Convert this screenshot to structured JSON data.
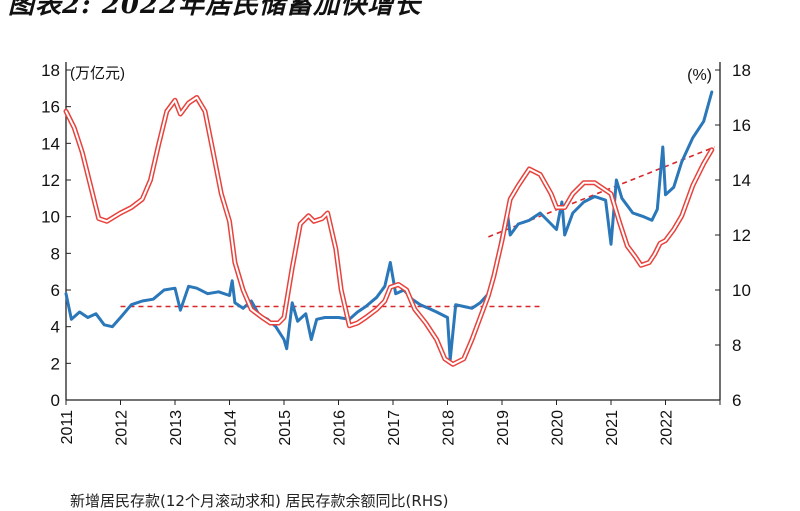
{
  "page_title": "图表2: 2022年居民储蓄加快增长",
  "legend_caption": "新增居民存款(12个月滚动求和) 居民存款余额同比(RHS)",
  "chart_data": {
    "type": "line",
    "title": "图表2: 2022年居民储蓄加快增长",
    "y_left": {
      "unit_label": "(万亿元)",
      "range": [
        0,
        18
      ],
      "ticks": [
        "0",
        "2",
        "4",
        "6",
        "8",
        "10",
        "12",
        "14",
        "16",
        "18"
      ]
    },
    "y_right": {
      "unit_label": "(%)",
      "range": [
        6,
        18
      ],
      "ticks": [
        "6",
        "8",
        "10",
        "12",
        "14",
        "16",
        "18"
      ]
    },
    "x": {
      "range": [
        2011,
        2023
      ],
      "ticks": [
        "2011",
        "2012",
        "2013",
        "2014",
        "2015",
        "2016",
        "2017",
        "2018",
        "2019",
        "2020",
        "2021",
        "2022"
      ]
    },
    "grid": false,
    "series": [
      {
        "axis": "left",
        "color": "#2a77b9",
        "points": [
          [
            2011,
            5.8
          ],
          [
            2011.1,
            4.4
          ],
          [
            2011.25,
            4.8
          ],
          [
            2011.4,
            4.5
          ],
          [
            2011.55,
            4.7
          ],
          [
            2011.7,
            4.1
          ],
          [
            2011.85,
            4.0
          ],
          [
            2012,
            4.5
          ],
          [
            2012.2,
            5.2
          ],
          [
            2012.4,
            5.4
          ],
          [
            2012.6,
            5.5
          ],
          [
            2012.8,
            6.0
          ],
          [
            2013,
            6.1
          ],
          [
            2013.1,
            4.9
          ],
          [
            2013.25,
            6.2
          ],
          [
            2013.4,
            6.1
          ],
          [
            2013.6,
            5.8
          ],
          [
            2013.8,
            5.9
          ],
          [
            2014,
            5.7
          ],
          [
            2014.05,
            6.5
          ],
          [
            2014.1,
            5.3
          ],
          [
            2014.25,
            5.0
          ],
          [
            2014.4,
            5.4
          ],
          [
            2014.55,
            4.6
          ],
          [
            2014.7,
            4.4
          ],
          [
            2014.85,
            4.0
          ],
          [
            2015,
            3.3
          ],
          [
            2015.05,
            2.8
          ],
          [
            2015.15,
            5.3
          ],
          [
            2015.25,
            4.3
          ],
          [
            2015.4,
            4.7
          ],
          [
            2015.5,
            3.3
          ],
          [
            2015.6,
            4.4
          ],
          [
            2015.75,
            4.5
          ],
          [
            2016,
            4.5
          ],
          [
            2016.2,
            4.4
          ],
          [
            2016.35,
            4.8
          ],
          [
            2016.5,
            5.1
          ],
          [
            2016.7,
            5.6
          ],
          [
            2016.85,
            6.2
          ],
          [
            2016.95,
            7.5
          ],
          [
            2017.05,
            5.8
          ],
          [
            2017.2,
            6.0
          ],
          [
            2017.35,
            5.5
          ],
          [
            2017.5,
            5.2
          ],
          [
            2017.65,
            5.0
          ],
          [
            2017.8,
            4.8
          ],
          [
            2018,
            4.5
          ],
          [
            2018.05,
            2.2
          ],
          [
            2018.15,
            5.2
          ],
          [
            2018.3,
            5.1
          ],
          [
            2018.45,
            5.0
          ],
          [
            2018.6,
            5.3
          ],
          [
            2018.75,
            5.8
          ],
          [
            2018.9,
            7.5
          ],
          [
            2019,
            9.0
          ],
          [
            2019.1,
            10.2
          ],
          [
            2019.15,
            9.0
          ],
          [
            2019.3,
            9.6
          ],
          [
            2019.5,
            9.8
          ],
          [
            2019.7,
            10.2
          ],
          [
            2019.9,
            9.6
          ],
          [
            2020,
            9.3
          ],
          [
            2020.1,
            10.8
          ],
          [
            2020.15,
            9.0
          ],
          [
            2020.3,
            10.2
          ],
          [
            2020.5,
            10.8
          ],
          [
            2020.7,
            11.1
          ],
          [
            2020.9,
            10.9
          ],
          [
            2021,
            8.5
          ],
          [
            2021.1,
            12.0
          ],
          [
            2021.2,
            11.0
          ],
          [
            2021.4,
            10.2
          ],
          [
            2021.6,
            10.0
          ],
          [
            2021.75,
            9.8
          ],
          [
            2021.85,
            10.4
          ],
          [
            2021.95,
            13.8
          ],
          [
            2022,
            11.2
          ],
          [
            2022.15,
            11.6
          ],
          [
            2022.3,
            13.0
          ],
          [
            2022.5,
            14.3
          ],
          [
            2022.7,
            15.2
          ],
          [
            2022.85,
            16.8
          ]
        ]
      },
      {
        "axis": "right",
        "color": "#e8423c",
        "points": [
          [
            2011,
            16.5
          ],
          [
            2011.15,
            15.9
          ],
          [
            2011.3,
            15.0
          ],
          [
            2011.45,
            13.8
          ],
          [
            2011.6,
            12.6
          ],
          [
            2011.75,
            12.5
          ],
          [
            2012,
            12.8
          ],
          [
            2012.2,
            13.0
          ],
          [
            2012.4,
            13.3
          ],
          [
            2012.55,
            14.0
          ],
          [
            2012.7,
            15.3
          ],
          [
            2012.85,
            16.5
          ],
          [
            2013,
            16.9
          ],
          [
            2013.1,
            16.4
          ],
          [
            2013.25,
            16.8
          ],
          [
            2013.4,
            17.0
          ],
          [
            2013.55,
            16.5
          ],
          [
            2013.7,
            15.0
          ],
          [
            2013.85,
            13.5
          ],
          [
            2014,
            12.5
          ],
          [
            2014.1,
            11.0
          ],
          [
            2014.25,
            10.0
          ],
          [
            2014.4,
            9.3
          ],
          [
            2014.6,
            9.0
          ],
          [
            2014.75,
            8.8
          ],
          [
            2014.9,
            8.8
          ],
          [
            2015,
            9.0
          ],
          [
            2015.15,
            10.8
          ],
          [
            2015.3,
            12.4
          ],
          [
            2015.45,
            12.7
          ],
          [
            2015.55,
            12.5
          ],
          [
            2015.7,
            12.6
          ],
          [
            2015.8,
            12.8
          ],
          [
            2015.95,
            11.5
          ],
          [
            2016.05,
            10.0
          ],
          [
            2016.2,
            8.7
          ],
          [
            2016.35,
            8.8
          ],
          [
            2016.5,
            9.0
          ],
          [
            2016.7,
            9.3
          ],
          [
            2016.85,
            9.6
          ],
          [
            2016.95,
            10.1
          ],
          [
            2017.1,
            10.2
          ],
          [
            2017.25,
            10.0
          ],
          [
            2017.4,
            9.3
          ],
          [
            2017.6,
            8.8
          ],
          [
            2017.8,
            8.2
          ],
          [
            2017.95,
            7.5
          ],
          [
            2018.1,
            7.3
          ],
          [
            2018.3,
            7.5
          ],
          [
            2018.45,
            8.2
          ],
          [
            2018.6,
            9.0
          ],
          [
            2018.75,
            9.8
          ],
          [
            2018.85,
            10.5
          ],
          [
            2019,
            11.8
          ],
          [
            2019.15,
            13.3
          ],
          [
            2019.3,
            13.8
          ],
          [
            2019.5,
            14.4
          ],
          [
            2019.7,
            14.2
          ],
          [
            2019.9,
            13.5
          ],
          [
            2020,
            13.0
          ],
          [
            2020.15,
            13.0
          ],
          [
            2020.3,
            13.5
          ],
          [
            2020.5,
            13.9
          ],
          [
            2020.7,
            13.9
          ],
          [
            2020.85,
            13.7
          ],
          [
            2021,
            13.5
          ],
          [
            2021.15,
            12.5
          ],
          [
            2021.3,
            11.6
          ],
          [
            2021.45,
            11.2
          ],
          [
            2021.55,
            10.9
          ],
          [
            2021.7,
            11.0
          ],
          [
            2021.8,
            11.3
          ],
          [
            2021.9,
            11.7
          ],
          [
            2022,
            11.8
          ],
          [
            2022.15,
            12.2
          ],
          [
            2022.3,
            12.7
          ],
          [
            2022.5,
            13.8
          ],
          [
            2022.7,
            14.6
          ],
          [
            2022.85,
            15.1
          ]
        ]
      }
    ],
    "trend_lines": [
      {
        "axis": "left",
        "color": "#d7262a",
        "from": [
          2012,
          5.1
        ],
        "to": [
          2019.7,
          5.1
        ]
      },
      {
        "axis": "left",
        "color": "#d7262a",
        "from": [
          2018.75,
          8.9
        ],
        "to": [
          2022.9,
          13.8
        ]
      }
    ]
  }
}
